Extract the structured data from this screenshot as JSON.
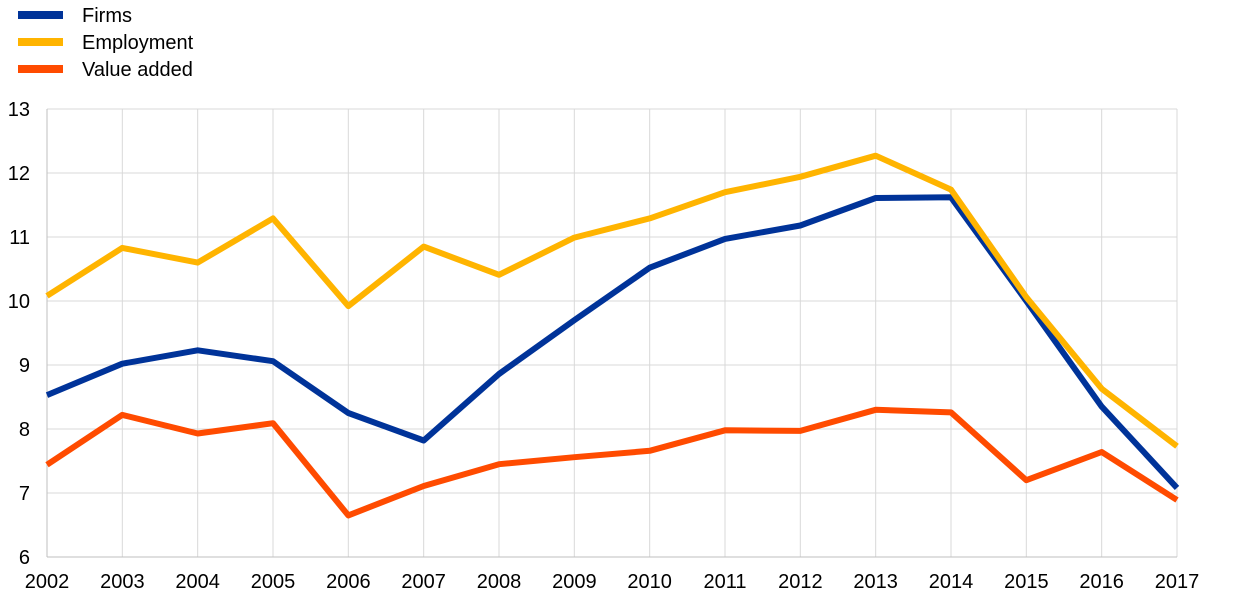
{
  "chart_data": {
    "type": "line",
    "title": "",
    "xlabel": "",
    "ylabel": "",
    "x": [
      "2002",
      "2003",
      "2004",
      "2005",
      "2006",
      "2007",
      "2008",
      "2009",
      "2010",
      "2011",
      "2012",
      "2013",
      "2014",
      "2015",
      "2016",
      "2017"
    ],
    "ylim": [
      6,
      13
    ],
    "yticks": [
      6,
      7,
      8,
      9,
      10,
      11,
      12,
      13
    ],
    "grid": true,
    "legend_position": "top-left",
    "series": [
      {
        "name": "Firms",
        "color": "#003399",
        "values": [
          8.53,
          9.02,
          9.23,
          9.06,
          8.25,
          7.82,
          8.86,
          9.7,
          10.52,
          10.97,
          11.18,
          11.61,
          11.62,
          10.0,
          8.35,
          7.08
        ]
      },
      {
        "name": "Employment",
        "color": "#FFB400",
        "values": [
          10.08,
          10.83,
          10.6,
          11.29,
          9.92,
          10.85,
          10.41,
          10.99,
          11.29,
          11.7,
          11.94,
          12.27,
          11.74,
          10.06,
          8.63,
          7.73
        ]
      },
      {
        "name": "Value added",
        "color": "#FF4B00",
        "values": [
          7.44,
          8.22,
          7.93,
          8.09,
          6.65,
          7.11,
          7.45,
          7.56,
          7.66,
          7.98,
          7.97,
          8.3,
          8.26,
          7.2,
          7.64,
          6.89
        ]
      }
    ]
  }
}
